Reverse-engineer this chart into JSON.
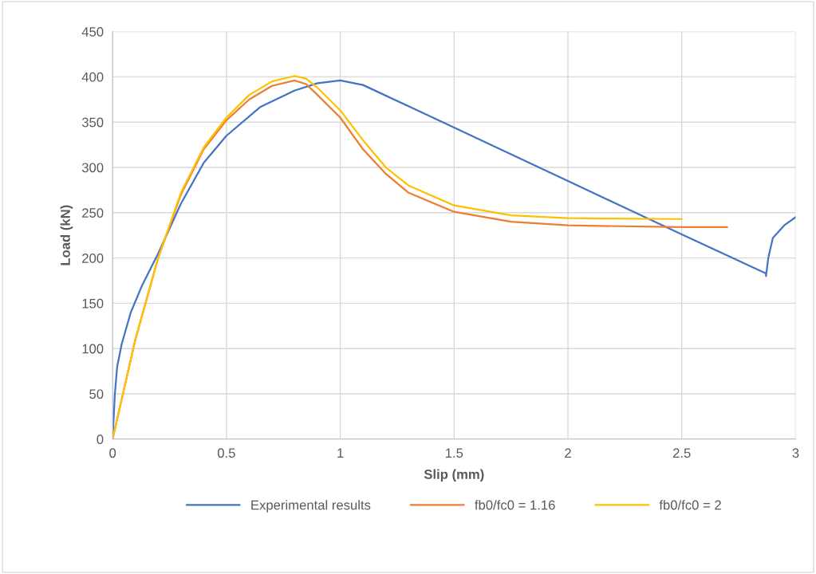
{
  "chart_data": {
    "type": "line",
    "xlabel": "Slip (mm)",
    "ylabel": "Load (kN)",
    "xlim": [
      0,
      3
    ],
    "xticks": [
      0,
      0.5,
      1,
      1.5,
      2,
      2.5,
      3
    ],
    "ylim": [
      0,
      450
    ],
    "yticks": [
      0,
      50,
      100,
      150,
      200,
      250,
      300,
      350,
      400,
      450
    ],
    "grid": true,
    "legend": "bottom",
    "marker": "none",
    "line_style": "solid",
    "series": [
      {
        "name": "Experimental results",
        "color": "#4472c4",
        "x": [
          0,
          0.01,
          0.02,
          0.04,
          0.08,
          0.13,
          0.2,
          0.3,
          0.4,
          0.5,
          0.65,
          0.8,
          0.9,
          1.0,
          1.1,
          1.5,
          2.0,
          2.5,
          2.87,
          2.87,
          2.88,
          2.9,
          2.95,
          3.0
        ],
        "values": [
          0,
          50,
          80,
          105,
          140,
          170,
          205,
          260,
          305,
          335,
          367,
          385,
          393,
          396,
          391,
          344,
          285,
          226,
          183,
          180,
          200,
          222,
          236,
          245
        ]
      },
      {
        "name": "fb0/fc0 = 1.16",
        "color": "#ed7d31",
        "x": [
          0,
          0.1,
          0.2,
          0.3,
          0.4,
          0.5,
          0.6,
          0.7,
          0.8,
          0.85,
          0.9,
          1.0,
          1.1,
          1.2,
          1.3,
          1.5,
          1.75,
          2.0,
          2.5,
          2.7
        ],
        "values": [
          0,
          110,
          200,
          270,
          320,
          352,
          375,
          390,
          396,
          392,
          380,
          355,
          320,
          293,
          272,
          251,
          240,
          236,
          234,
          234
        ]
      },
      {
        "name": "fb0/fc0 = 2",
        "color": "#ffc000",
        "x": [
          0,
          0.1,
          0.2,
          0.3,
          0.4,
          0.5,
          0.6,
          0.7,
          0.8,
          0.85,
          0.9,
          1.0,
          1.1,
          1.2,
          1.3,
          1.5,
          1.75,
          2.0,
          2.5
        ],
        "values": [
          0,
          110,
          200,
          272,
          322,
          355,
          380,
          395,
          401,
          398,
          388,
          363,
          330,
          300,
          280,
          258,
          247,
          244,
          243
        ]
      }
    ]
  }
}
